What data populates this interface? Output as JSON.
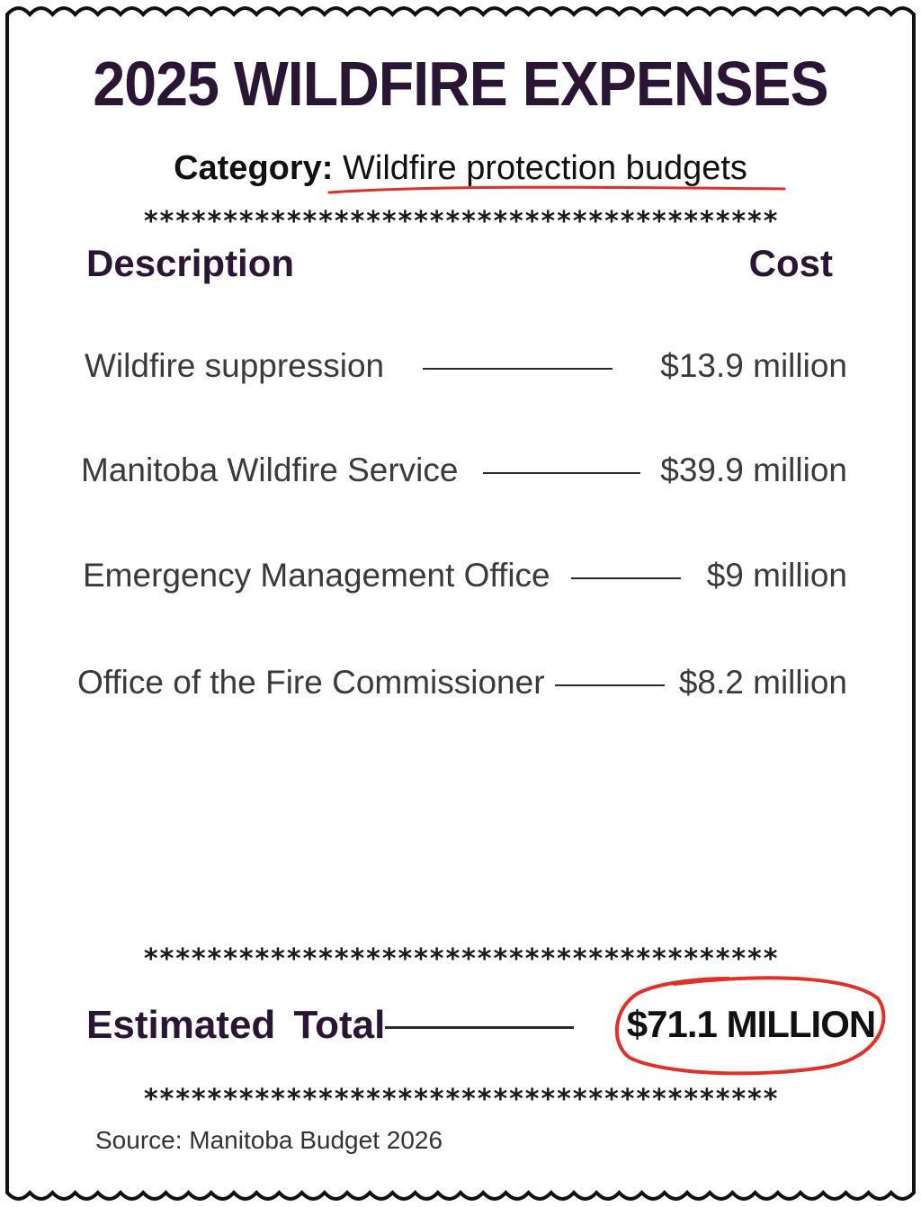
{
  "title": "2025 WILDFIRE EXPENSES",
  "category": {
    "label": "Category:",
    "value": "Wildfire protection budgets"
  },
  "separator": "****************************************",
  "headers": {
    "description": "Description",
    "cost": "Cost"
  },
  "items": [
    {
      "description": "Wildfire suppression",
      "cost": "$13.9 million"
    },
    {
      "description": "Manitoba Wildfire Service",
      "cost": "$39.9 million"
    },
    {
      "description": "Emergency Management Office",
      "cost": "$9 million"
    },
    {
      "description": "Office of the Fire Commissioner",
      "cost": "$8.2 million"
    }
  ],
  "total": {
    "label": "Estimated  Total",
    "value": "$71.1 MILLION"
  },
  "source": "Source: Manitoba Budget 2026",
  "colors": {
    "title": "#2a1634",
    "accent_red": "#e0302a",
    "text": "#3a3a3a"
  }
}
